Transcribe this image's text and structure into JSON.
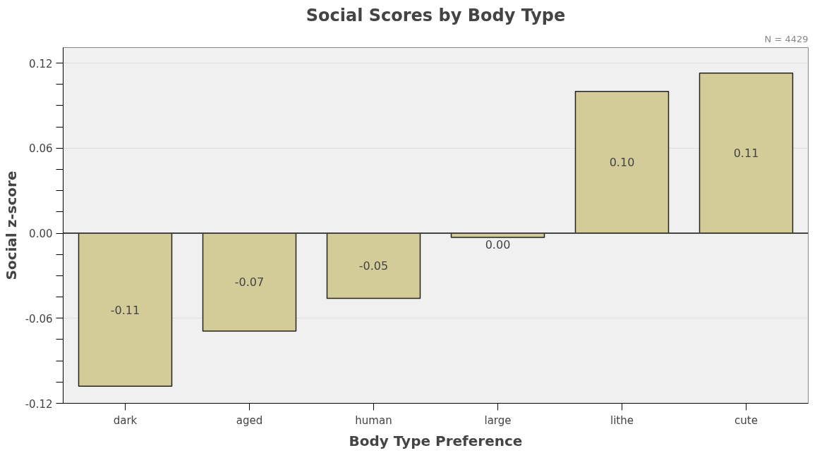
{
  "chart_data": {
    "type": "bar",
    "title": "Social Scores by Body Type",
    "xlabel": "Body Type Preference",
    "ylabel": "Social z-score",
    "annotations": [
      "N = 4429"
    ],
    "categories": [
      "dark",
      "aged",
      "human",
      "large",
      "lithe",
      "cute"
    ],
    "values": [
      -0.108,
      -0.069,
      -0.046,
      -0.003,
      0.1,
      0.113
    ],
    "value_labels": [
      "-0.11",
      "-0.07",
      "-0.05",
      "0.00",
      "0.10",
      "0.11"
    ],
    "color": "#d3cc98",
    "ylim": [
      -0.12,
      0.131
    ],
    "yticks": [
      -0.12,
      {
        "value": -0.105,
        "label": null
      },
      {
        "value": -0.09,
        "label": null
      },
      {
        "value": -0.075,
        "label": null
      },
      -0.06,
      {
        "value": -0.045,
        "label": null
      },
      {
        "value": -0.03,
        "label": null
      },
      {
        "value": -0.015,
        "label": null
      },
      {
        "value": 0,
        "label": "0.00"
      },
      {
        "value": 0.015,
        "label": null
      },
      {
        "value": 0.03,
        "label": null
      },
      {
        "value": 0.045,
        "label": null
      },
      0.06,
      {
        "value": 0.075,
        "label": null
      },
      {
        "value": 0.09,
        "label": null
      },
      {
        "value": 0.105,
        "label": null
      },
      0.12
    ],
    "grid": "y",
    "ref_lines": [
      {
        "axis": "y",
        "value": 0,
        "color": "#444444"
      }
    ]
  }
}
